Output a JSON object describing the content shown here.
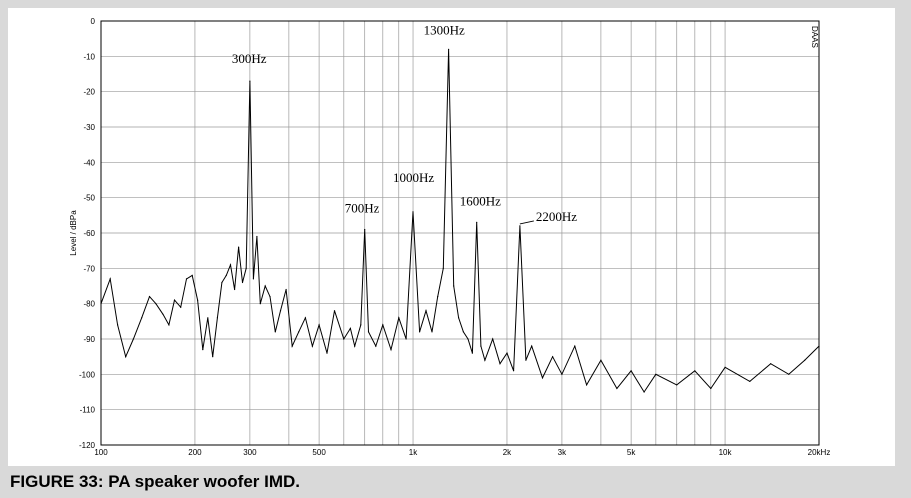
{
  "caption": "FIGURE 33: PA speaker woofer IMD.",
  "watermark": "DAAS",
  "chart_data": {
    "type": "line",
    "title": "",
    "xlabel": "",
    "ylabel": "Level / dBPa",
    "xscale": "log",
    "xlim": [
      100,
      20000
    ],
    "ylim": [
      -120,
      0
    ],
    "grid": true,
    "y_ticks": [
      0,
      -10,
      -20,
      -30,
      -40,
      -50,
      -60,
      -70,
      -80,
      -90,
      -100,
      -110,
      -120
    ],
    "y_tick_labels": [
      "0",
      "-10",
      "-20",
      "-30",
      "-40",
      "-50",
      "-60",
      "-70",
      "-80",
      "-90",
      "-100",
      "-110",
      "-120"
    ],
    "x_ticks": [
      100,
      200,
      300,
      500,
      1000,
      2000,
      3000,
      5000,
      10000,
      20000
    ],
    "x_tick_labels": [
      "100",
      "200",
      "300",
      "500",
      "1k",
      "2k",
      "3k",
      "5k",
      "10k",
      "20kHz"
    ],
    "line_color": "#000000",
    "grid_color": "#9a9a9a",
    "peaks": [
      {
        "label": "300Hz",
        "x": 300,
        "y": -17
      },
      {
        "label": "700Hz",
        "x": 700,
        "y": -59
      },
      {
        "label": "1000Hz",
        "x": 1000,
        "y": -54
      },
      {
        "label": "1300Hz",
        "x": 1300,
        "y": -8
      },
      {
        "label": "1600Hz",
        "x": 1600,
        "y": -57
      },
      {
        "label": "2200Hz",
        "x": 2200,
        "y": -58
      }
    ],
    "series": [
      {
        "values": [
          [
            100,
            -80
          ],
          [
            107,
            -73
          ],
          [
            113,
            -86
          ],
          [
            120,
            -95
          ],
          [
            127,
            -90
          ],
          [
            135,
            -84
          ],
          [
            143,
            -78
          ],
          [
            150,
            -80
          ],
          [
            158,
            -83
          ],
          [
            165,
            -86
          ],
          [
            172,
            -79
          ],
          [
            180,
            -81
          ],
          [
            188,
            -73
          ],
          [
            196,
            -72
          ],
          [
            204,
            -79
          ],
          [
            212,
            -93
          ],
          [
            220,
            -84
          ],
          [
            228,
            -95
          ],
          [
            236,
            -84
          ],
          [
            244,
            -74
          ],
          [
            252,
            -72
          ],
          [
            260,
            -69
          ],
          [
            268,
            -76
          ],
          [
            276,
            -64
          ],
          [
            284,
            -74
          ],
          [
            292,
            -70
          ],
          [
            300,
            -17
          ],
          [
            308,
            -73
          ],
          [
            316,
            -61
          ],
          [
            324,
            -80
          ],
          [
            336,
            -75
          ],
          [
            348,
            -78
          ],
          [
            362,
            -88
          ],
          [
            376,
            -82
          ],
          [
            392,
            -76
          ],
          [
            410,
            -92
          ],
          [
            430,
            -88
          ],
          [
            452,
            -84
          ],
          [
            476,
            -92
          ],
          [
            500,
            -86
          ],
          [
            530,
            -94
          ],
          [
            560,
            -82
          ],
          [
            600,
            -90
          ],
          [
            630,
            -87
          ],
          [
            650,
            -92
          ],
          [
            680,
            -86
          ],
          [
            700,
            -59
          ],
          [
            720,
            -88
          ],
          [
            760,
            -92
          ],
          [
            800,
            -86
          ],
          [
            850,
            -93
          ],
          [
            900,
            -84
          ],
          [
            950,
            -90
          ],
          [
            1000,
            -54
          ],
          [
            1050,
            -88
          ],
          [
            1100,
            -82
          ],
          [
            1150,
            -88
          ],
          [
            1200,
            -78
          ],
          [
            1250,
            -70
          ],
          [
            1300,
            -8
          ],
          [
            1350,
            -75
          ],
          [
            1400,
            -84
          ],
          [
            1450,
            -88
          ],
          [
            1500,
            -90
          ],
          [
            1550,
            -94
          ],
          [
            1600,
            -57
          ],
          [
            1650,
            -92
          ],
          [
            1700,
            -96
          ],
          [
            1800,
            -90
          ],
          [
            1900,
            -97
          ],
          [
            2000,
            -94
          ],
          [
            2100,
            -99
          ],
          [
            2200,
            -58
          ],
          [
            2300,
            -96
          ],
          [
            2400,
            -92
          ],
          [
            2600,
            -101
          ],
          [
            2800,
            -95
          ],
          [
            3000,
            -100
          ],
          [
            3300,
            -92
          ],
          [
            3600,
            -103
          ],
          [
            4000,
            -96
          ],
          [
            4500,
            -104
          ],
          [
            5000,
            -99
          ],
          [
            5500,
            -105
          ],
          [
            6000,
            -100
          ],
          [
            7000,
            -103
          ],
          [
            8000,
            -99
          ],
          [
            9000,
            -104
          ],
          [
            10000,
            -98
          ],
          [
            12000,
            -102
          ],
          [
            14000,
            -97
          ],
          [
            16000,
            -100
          ],
          [
            18000,
            -96
          ],
          [
            20000,
            -92
          ]
        ]
      }
    ]
  }
}
